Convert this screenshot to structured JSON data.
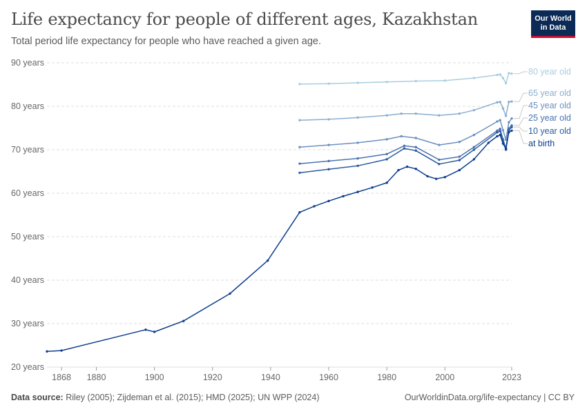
{
  "header": {
    "title": "Life expectancy for people of different ages, Kazakhstan",
    "subtitle": "Total period life expectancy for people who have reached a given age."
  },
  "logo": {
    "line1": "Our World",
    "line2": "in Data"
  },
  "footer": {
    "source_label": "Data source:",
    "source_text": "Riley (2005); Zijdeman et al. (2015); HMD (2025); UN WPP (2024)",
    "url_text": "OurWorldinData.org/life-expectancy | CC BY"
  },
  "colors": {
    "at_birth": "#0e3d8c",
    "age10": "#2a5aa0",
    "age25": "#4a72b0",
    "age45": "#6b8fc0",
    "age65": "#8aaed0",
    "age80": "#a9cde0"
  },
  "chart_data": {
    "type": "line",
    "title": "Life expectancy for people of different ages, Kazakhstan",
    "xlim": [
      1863,
      2023
    ],
    "ylim": [
      20,
      90
    ],
    "x_ticks": [
      "1868",
      "1880",
      "1900",
      "1920",
      "1940",
      "1960",
      "1980",
      "2000",
      "2023"
    ],
    "y_ticks": [
      "20 years",
      "30 years",
      "40 years",
      "50 years",
      "60 years",
      "70 years",
      "80 years",
      "90 years"
    ],
    "grid": true,
    "series": [
      {
        "name": "80 year old",
        "color": "#a9cde0",
        "points": [
          [
            1950,
            85.1
          ],
          [
            1960,
            85.2
          ],
          [
            1970,
            85.4
          ],
          [
            1980,
            85.6
          ],
          [
            1990,
            85.8
          ],
          [
            2000,
            85.9
          ],
          [
            2010,
            86.5
          ],
          [
            2018,
            87.2
          ],
          [
            2019,
            87.3
          ],
          [
            2020,
            86.5
          ],
          [
            2021,
            85.3
          ],
          [
            2022,
            87.6
          ],
          [
            2023,
            87.5
          ]
        ]
      },
      {
        "name": "65 year old",
        "color": "#8aaed0",
        "points": [
          [
            1950,
            76.8
          ],
          [
            1960,
            77.0
          ],
          [
            1970,
            77.4
          ],
          [
            1980,
            77.9
          ],
          [
            1985,
            78.3
          ],
          [
            1990,
            78.3
          ],
          [
            1998,
            77.9
          ],
          [
            2005,
            78.3
          ],
          [
            2010,
            79.1
          ],
          [
            2018,
            80.9
          ],
          [
            2019,
            81.0
          ],
          [
            2020,
            79.5
          ],
          [
            2021,
            77.8
          ],
          [
            2022,
            81.0
          ],
          [
            2023,
            81.1
          ]
        ]
      },
      {
        "name": "45 year old",
        "color": "#6b8fc0",
        "points": [
          [
            1950,
            70.6
          ],
          [
            1960,
            71.1
          ],
          [
            1970,
            71.6
          ],
          [
            1980,
            72.4
          ],
          [
            1985,
            73.1
          ],
          [
            1990,
            72.7
          ],
          [
            1998,
            71.1
          ],
          [
            2005,
            71.8
          ],
          [
            2010,
            73.4
          ],
          [
            2018,
            76.5
          ],
          [
            2019,
            76.8
          ],
          [
            2020,
            74.5
          ],
          [
            2021,
            72.3
          ],
          [
            2022,
            76.3
          ],
          [
            2023,
            77.2
          ]
        ]
      },
      {
        "name": "25 year old",
        "color": "#4a72b0",
        "points": [
          [
            1950,
            66.8
          ],
          [
            1960,
            67.4
          ],
          [
            1970,
            68.0
          ],
          [
            1980,
            69.0
          ],
          [
            1986,
            70.9
          ],
          [
            1990,
            70.6
          ],
          [
            1998,
            67.7
          ],
          [
            2005,
            68.4
          ],
          [
            2010,
            70.6
          ],
          [
            2018,
            74.4
          ],
          [
            2019,
            74.8
          ],
          [
            2020,
            72.4
          ],
          [
            2021,
            70.3
          ],
          [
            2022,
            74.9
          ],
          [
            2023,
            75.6
          ]
        ]
      },
      {
        "name": "10 year old",
        "color": "#2a5aa0",
        "points": [
          [
            1950,
            64.7
          ],
          [
            1960,
            65.5
          ],
          [
            1970,
            66.3
          ],
          [
            1980,
            67.8
          ],
          [
            1986,
            70.3
          ],
          [
            1990,
            69.8
          ],
          [
            1998,
            66.7
          ],
          [
            2005,
            67.6
          ],
          [
            2010,
            70.0
          ],
          [
            2018,
            74.0
          ],
          [
            2019,
            74.3
          ],
          [
            2020,
            72.0
          ],
          [
            2021,
            70.0
          ],
          [
            2022,
            74.5
          ],
          [
            2023,
            75.2
          ]
        ]
      },
      {
        "name": "at birth",
        "color": "#0e3d8c",
        "points": [
          [
            1863,
            23.6
          ],
          [
            1868,
            23.8
          ],
          [
            1897,
            28.6
          ],
          [
            1900,
            28.1
          ],
          [
            1910,
            30.6
          ],
          [
            1926,
            36.9
          ],
          [
            1939,
            44.5
          ],
          [
            1950,
            55.6
          ],
          [
            1955,
            57.0
          ],
          [
            1960,
            58.2
          ],
          [
            1965,
            59.3
          ],
          [
            1970,
            60.3
          ],
          [
            1975,
            61.3
          ],
          [
            1980,
            62.4
          ],
          [
            1984,
            65.3
          ],
          [
            1987,
            66.1
          ],
          [
            1990,
            65.6
          ],
          [
            1994,
            63.9
          ],
          [
            1997,
            63.3
          ],
          [
            2000,
            63.7
          ],
          [
            2005,
            65.3
          ],
          [
            2010,
            67.8
          ],
          [
            2015,
            71.6
          ],
          [
            2018,
            73.1
          ],
          [
            2019,
            73.4
          ],
          [
            2020,
            71.4
          ],
          [
            2021,
            70.2
          ],
          [
            2022,
            74.0
          ],
          [
            2023,
            74.4
          ]
        ]
      }
    ],
    "series_labels": [
      "80 year old",
      "65 year old",
      "45 year old",
      "25 year old",
      "10 year old",
      "at birth"
    ]
  }
}
